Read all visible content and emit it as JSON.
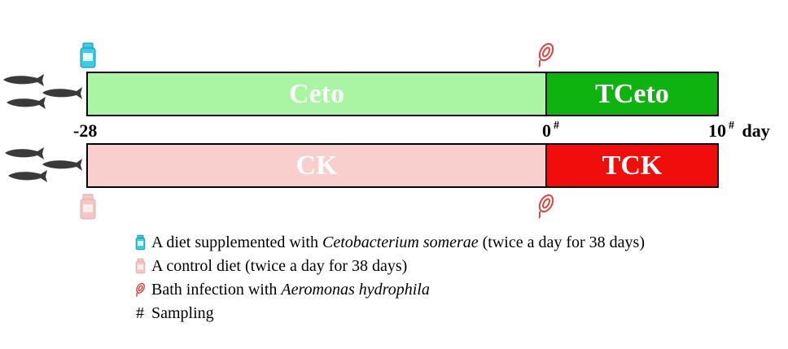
{
  "groups": {
    "ceto": {
      "label": "Ceto",
      "color": "#a9f5a3"
    },
    "tceto": {
      "label": "TCeto",
      "color": "#0fb30f"
    },
    "ck": {
      "label": "CK",
      "color": "#f9cfcd"
    },
    "tck": {
      "label": "TCK",
      "color": "#f20d0d"
    }
  },
  "timeline": {
    "start_label": "-28",
    "zero_label": "0",
    "end_label": "10",
    "unit_label": "day",
    "sampling_mark": "#"
  },
  "legend": [
    {
      "icon": "ceto-bottle-icon",
      "parts": [
        {
          "text": "A diet supplemented with ",
          "italic": false
        },
        {
          "text": "Cetobacterium somerae",
          "italic": true
        },
        {
          "text": " (twice a day for 38 days)",
          "italic": false
        }
      ]
    },
    {
      "icon": "control-bottle-icon",
      "parts": [
        {
          "text": "A control diet (twice a day for 38 days)",
          "italic": false
        }
      ]
    },
    {
      "icon": "bacterium-icon",
      "parts": [
        {
          "text": "Bath infection with ",
          "italic": false
        },
        {
          "text": "Aeromonas hydrophila",
          "italic": true
        }
      ]
    },
    {
      "icon": "hash",
      "parts": [
        {
          "text": "Sampling",
          "italic": false
        }
      ]
    }
  ],
  "colors": {
    "ceto_bottle": "#38cde8",
    "control_bottle": "#f4c7c7",
    "bacterium": "#e0433c",
    "fish": "#3a3a3a"
  }
}
